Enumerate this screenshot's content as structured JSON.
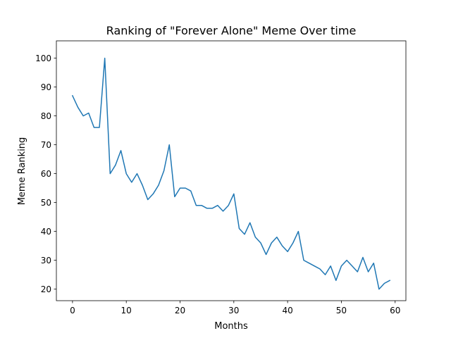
{
  "chart_data": {
    "type": "line",
    "title": "Ranking of \"Forever Alone\" Meme Over time",
    "xlabel": "Months",
    "ylabel": "Meme Ranking",
    "xlim": [
      -3,
      62
    ],
    "ylim": [
      16,
      106
    ],
    "xticks": [
      0,
      10,
      20,
      30,
      40,
      50,
      60
    ],
    "yticks": [
      20,
      30,
      40,
      50,
      60,
      70,
      80,
      90,
      100
    ],
    "grid": false,
    "line_color": "#1f77b4",
    "x": [
      0,
      1,
      2,
      3,
      4,
      5,
      6,
      7,
      8,
      9,
      10,
      11,
      12,
      13,
      14,
      15,
      16,
      17,
      18,
      19,
      20,
      21,
      22,
      23,
      24,
      25,
      26,
      27,
      28,
      29,
      30,
      31,
      32,
      33,
      34,
      35,
      36,
      37,
      38,
      39,
      40,
      41,
      42,
      43,
      44,
      45,
      46,
      47,
      48,
      49,
      50,
      51,
      52,
      53,
      54,
      55,
      56,
      57,
      58,
      59
    ],
    "series": [
      {
        "values": [
          87,
          83,
          80,
          81,
          76,
          76,
          100,
          60,
          63,
          68,
          60,
          57,
          60,
          56,
          51,
          53,
          56,
          61,
          70,
          52,
          55,
          55,
          54,
          49,
          49,
          48,
          48,
          49,
          47,
          49,
          53,
          41,
          39,
          43,
          38,
          36,
          32,
          36,
          38,
          35,
          33,
          36,
          40,
          30,
          29,
          28,
          27,
          25,
          28,
          23,
          28,
          30,
          28,
          26,
          31,
          26,
          29,
          20,
          22,
          23
        ]
      }
    ]
  }
}
